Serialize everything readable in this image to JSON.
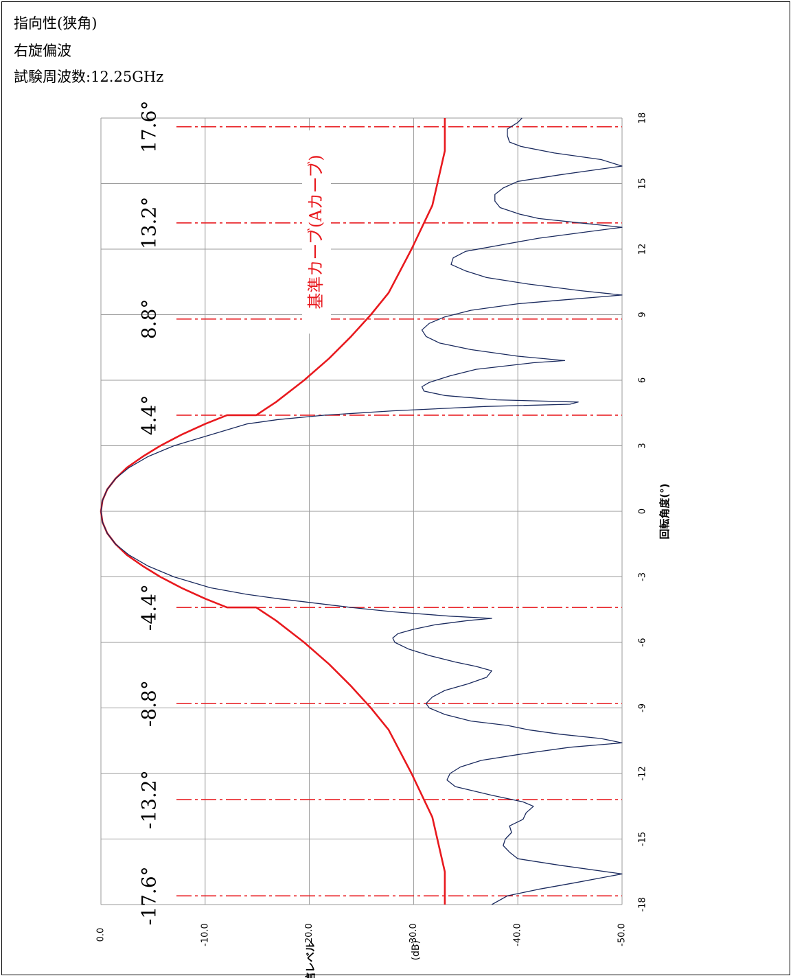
{
  "header": {
    "line1": "指向性(狭角)",
    "line2": "右旋偏波",
    "line3": "試験周波数:12.25GHz"
  },
  "colors": {
    "measured": "#1a2a5e",
    "reference": "#e8191e",
    "guide": "#e8191e",
    "grid": "#9a9a9a"
  },
  "chart_data": {
    "type": "line",
    "orientation": "rotated-90-ccw",
    "xlabel": "回転角度(°)",
    "ylabel": "相対受信レベル(dB)",
    "ylabel_main": "相対受信レベル",
    "ylabel_unit": "(dB)",
    "xlim": [
      -18,
      18
    ],
    "ylim": [
      0,
      -50
    ],
    "x_ticks": [
      -18,
      -15,
      -12,
      -9,
      -6,
      -3,
      0,
      3,
      6,
      9,
      12,
      15,
      18
    ],
    "x_tick_labels": [
      "-18",
      "-15",
      "-12",
      "-9",
      "-6",
      "-3",
      "0",
      "3",
      "6",
      "9",
      "12",
      "15",
      "18"
    ],
    "y_ticks": [
      0,
      -10,
      -20,
      -30,
      -40,
      -50
    ],
    "y_tick_labels": [
      "0.0",
      "-10.0",
      "-20.0",
      "-30.0",
      "-40.0",
      "-50.0"
    ],
    "grid": true,
    "guide_angles": [
      -17.6,
      -13.2,
      -8.8,
      -4.4,
      4.4,
      8.8,
      13.2,
      17.6
    ],
    "guide_labels": [
      "-17.6°",
      "-13.2°",
      "-8.8°",
      "-4.4°",
      "4.4°",
      "8.8°",
      "13.2°",
      "17.6°"
    ],
    "annotation": "基準カーブ(Aカーブ)",
    "series": [
      {
        "role": "reference",
        "x": [
          -18,
          -16.5,
          -14,
          -12,
          -10,
          -9,
          -8,
          -7,
          -6,
          -5,
          -4.4,
          -4.4,
          -4,
          -3.5,
          -3,
          -2.5,
          -2,
          -1.5,
          -1,
          -0.5,
          0,
          0.5,
          1,
          1.5,
          2,
          2.5,
          3,
          3.5,
          4,
          4.4,
          4.4,
          5,
          6,
          7,
          8,
          9,
          10,
          12,
          14,
          16.5,
          18
        ],
        "y": [
          -33,
          -33,
          -31.8,
          -29.8,
          -27.6,
          -25.9,
          -24,
          -21.9,
          -19.5,
          -16.8,
          -14.9,
          -12.1,
          -10,
          -7.7,
          -5.7,
          -4,
          -2.5,
          -1.4,
          -0.6,
          -0.15,
          0,
          -0.15,
          -0.6,
          -1.4,
          -2.5,
          -4,
          -5.7,
          -7.7,
          -10,
          -12.1,
          -14.9,
          -16.8,
          -19.5,
          -21.9,
          -24,
          -25.9,
          -27.6,
          -29.8,
          -31.8,
          -33,
          -33
        ]
      },
      {
        "role": "measured",
        "x": [
          -18,
          -17.6,
          -17.3,
          -17,
          -16.6,
          -16.2,
          -15.9,
          -15.6,
          -15.3,
          -15,
          -14.7,
          -14.4,
          -14.1,
          -13.8,
          -13.5,
          -13.3,
          -13,
          -12.6,
          -12.3,
          -12,
          -11.7,
          -11.4,
          -11.1,
          -10.8,
          -10.6,
          -10.4,
          -10.2,
          -10,
          -9.8,
          -9.6,
          -9.3,
          -9,
          -8.8,
          -8.5,
          -8.2,
          -7.9,
          -7.6,
          -7.3,
          -7.1,
          -6.9,
          -6.6,
          -6.3,
          -6,
          -5.8,
          -5.6,
          -5.4,
          -5.2,
          -5,
          -4.9,
          -4.8,
          -4.6,
          -4.4,
          -4.2,
          -4,
          -3.8,
          -3.5,
          -3,
          -2.5,
          -2,
          -1.5,
          -1,
          -0.5,
          0,
          0.5,
          1,
          1.5,
          2,
          2.5,
          3,
          3.5,
          4,
          4.2,
          4.4,
          4.6,
          4.8,
          4.9,
          5,
          5.1,
          5.3,
          5.5,
          5.7,
          5.9,
          6.2,
          6.5,
          6.8,
          6.9,
          7.1,
          7.4,
          7.7,
          8,
          8.3,
          8.6,
          8.9,
          9.2,
          9.5,
          9.7,
          9.9,
          10.1,
          10.4,
          10.7,
          11,
          11.3,
          11.6,
          11.9,
          12.2,
          12.5,
          12.8,
          13,
          13.2,
          13.4,
          13.6,
          13.9,
          14.2,
          14.5,
          14.8,
          15.1,
          15.4,
          15.8,
          16.1,
          16.4,
          16.7,
          16.9,
          17.2,
          17.5,
          17.8,
          18
        ],
        "y": [
          -37.5,
          -39,
          -42,
          -45.5,
          -50,
          -44,
          -40,
          -39.2,
          -38.6,
          -38.8,
          -39.4,
          -39.2,
          -40.5,
          -40.8,
          -41.5,
          -40.5,
          -37.5,
          -34,
          -33.2,
          -33.5,
          -34.5,
          -36.5,
          -40.5,
          -45,
          -50,
          -48,
          -44,
          -41,
          -39,
          -35.5,
          -33,
          -31.5,
          -31.2,
          -31.8,
          -33,
          -35.2,
          -37,
          -37.5,
          -36,
          -34,
          -31.5,
          -29.5,
          -28.2,
          -28,
          -28.5,
          -30,
          -32,
          -35.2,
          -37.5,
          -33.5,
          -28,
          -24,
          -20.5,
          -17,
          -14,
          -10.5,
          -7,
          -4.5,
          -2.7,
          -1.4,
          -0.6,
          -0.15,
          0,
          -0.15,
          -0.6,
          -1.4,
          -2.7,
          -4.5,
          -7,
          -10.5,
          -14,
          -17,
          -21.5,
          -28,
          -37,
          -45,
          -45.8,
          -38,
          -33,
          -31,
          -30.8,
          -31.5,
          -33.5,
          -36,
          -41.5,
          -44.5,
          -40,
          -35.5,
          -32.5,
          -31.2,
          -30.8,
          -31.5,
          -33,
          -35.5,
          -40,
          -45,
          -50,
          -46,
          -41,
          -37,
          -35,
          -33.6,
          -33.8,
          -35,
          -38.5,
          -42,
          -46.8,
          -50,
          -46,
          -42,
          -40.2,
          -38.3,
          -37.8,
          -37.8,
          -38.6,
          -40,
          -44,
          -50,
          -48,
          -43.5,
          -40.3,
          -39.2,
          -39,
          -39,
          -40,
          -40.4
        ]
      }
    ]
  }
}
